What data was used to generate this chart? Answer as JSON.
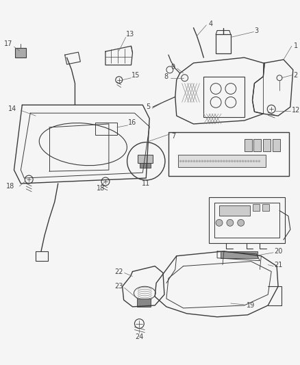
{
  "background_color": "#f5f5f5",
  "line_color": "#3a3a3a",
  "label_color": "#444444",
  "fig_width": 4.38,
  "fig_height": 5.33,
  "dpi": 100
}
